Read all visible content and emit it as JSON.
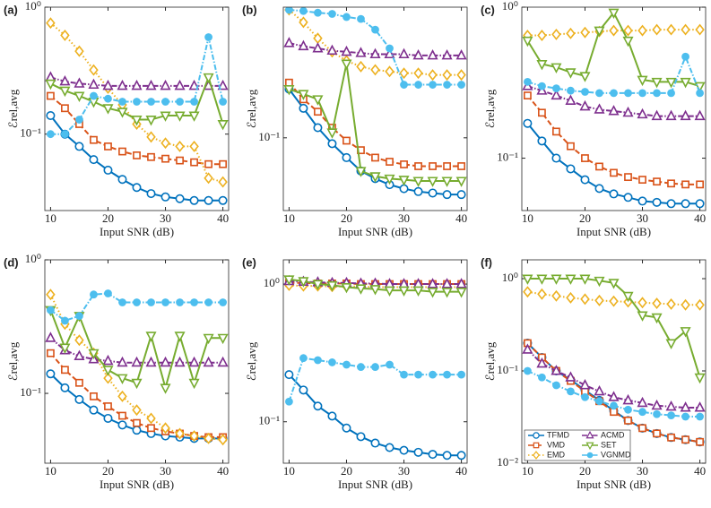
{
  "chart_data": [
    {
      "type": "line",
      "label": "(a)",
      "xlabel": "Input SNR (dB)",
      "ylabel": "ℰrel,avg",
      "ylog": true,
      "x": [
        10,
        12.5,
        15,
        17.5,
        20,
        22.5,
        25,
        27.5,
        30,
        32.5,
        35,
        37.5,
        40
      ],
      "xlim": [
        9,
        41
      ],
      "xticks": [
        10,
        20,
        30,
        40
      ],
      "ylim": [
        0.025,
        1
      ],
      "yticks": [
        {
          "value": 0.1,
          "label": "10⁻¹"
        },
        {
          "value": 1,
          "label": "10⁰"
        }
      ],
      "series": [
        {
          "color": "#0072BD",
          "marker": "circle",
          "linestyle": "solid",
          "values": [
            0.14,
            0.1,
            0.08,
            0.063,
            0.052,
            0.044,
            0.038,
            0.034,
            0.032,
            0.031,
            0.03,
            0.03,
            0.03
          ]
        },
        {
          "color": "#D95319",
          "marker": "square",
          "linestyle": "dashed",
          "values": [
            0.2,
            0.16,
            0.12,
            0.09,
            0.08,
            0.073,
            0.068,
            0.066,
            0.064,
            0.062,
            0.06,
            0.058,
            0.058
          ]
        },
        {
          "color": "#EDB120",
          "marker": "diamond",
          "linestyle": "dotted",
          "values": [
            0.75,
            0.6,
            0.45,
            0.32,
            0.23,
            0.17,
            0.12,
            0.095,
            0.085,
            0.08,
            0.08,
            0.045,
            0.042
          ]
        },
        {
          "color": "#7E2F8E",
          "marker": "triangle-up",
          "linestyle": "dashdot",
          "values": [
            0.28,
            0.26,
            0.25,
            0.245,
            0.24,
            0.24,
            0.24,
            0.24,
            0.24,
            0.24,
            0.24,
            0.24,
            0.24
          ]
        },
        {
          "color": "#77AC30",
          "marker": "triangle-down",
          "linestyle": "solid",
          "values": [
            0.25,
            0.22,
            0.2,
            0.18,
            0.16,
            0.15,
            0.13,
            0.13,
            0.14,
            0.14,
            0.14,
            0.28,
            0.12
          ]
        },
        {
          "color": "#4DBEEE",
          "marker": "circle-filled",
          "linestyle": "dashdot",
          "values": [
            0.1,
            0.1,
            0.13,
            0.2,
            0.19,
            0.18,
            0.18,
            0.18,
            0.18,
            0.18,
            0.18,
            0.58,
            0.18
          ]
        }
      ]
    },
    {
      "type": "line",
      "label": "(b)",
      "xlabel": "Input SNR (dB)",
      "ylabel": "ℰrel,avg",
      "ylog": true,
      "x": [
        10,
        12.5,
        15,
        17.5,
        20,
        22.5,
        25,
        27.5,
        30,
        32.5,
        35,
        37.5,
        40
      ],
      "xlim": [
        9,
        41
      ],
      "xticks": [
        10,
        20,
        30,
        40
      ],
      "ylim": [
        0.027,
        1.05
      ],
      "yticks": [
        {
          "value": 0.1,
          "label": "10⁻¹"
        }
      ],
      "series": [
        {
          "color": "#0072BD",
          "marker": "circle",
          "linestyle": "solid",
          "values": [
            0.24,
            0.17,
            0.12,
            0.09,
            0.07,
            0.055,
            0.048,
            0.043,
            0.04,
            0.038,
            0.037,
            0.036,
            0.036
          ]
        },
        {
          "color": "#D95319",
          "marker": "square",
          "linestyle": "dashed",
          "values": [
            0.27,
            0.2,
            0.16,
            0.12,
            0.095,
            0.08,
            0.07,
            0.065,
            0.062,
            0.06,
            0.06,
            0.06,
            0.06
          ]
        },
        {
          "color": "#EDB120",
          "marker": "diamond",
          "linestyle": "dotted",
          "values": [
            1.0,
            0.8,
            0.6,
            0.47,
            0.4,
            0.36,
            0.34,
            0.33,
            0.32,
            0.32,
            0.31,
            0.31,
            0.31
          ]
        },
        {
          "color": "#7E2F8E",
          "marker": "triangle-up",
          "linestyle": "dashdot",
          "values": [
            0.55,
            0.52,
            0.5,
            0.48,
            0.47,
            0.46,
            0.45,
            0.45,
            0.45,
            0.44,
            0.44,
            0.44,
            0.44
          ]
        },
        {
          "color": "#77AC30",
          "marker": "triangle-down",
          "linestyle": "solid",
          "values": [
            0.24,
            0.22,
            0.2,
            0.11,
            0.38,
            0.055,
            0.05,
            0.048,
            0.047,
            0.046,
            0.046,
            0.046,
            0.046
          ]
        },
        {
          "color": "#4DBEEE",
          "marker": "circle-filled",
          "linestyle": "dashdot",
          "values": [
            1.0,
            0.98,
            0.95,
            0.93,
            0.88,
            0.85,
            0.7,
            0.5,
            0.26,
            0.26,
            0.26,
            0.26,
            0.26
          ]
        }
      ]
    },
    {
      "type": "line",
      "label": "(c)",
      "xlabel": "Input SNR (dB)",
      "ylabel": "ℰrel,avg",
      "ylog": true,
      "x": [
        10,
        12.5,
        15,
        17.5,
        20,
        22.5,
        25,
        27.5,
        30,
        32.5,
        35,
        37.5,
        40
      ],
      "xlim": [
        9,
        41
      ],
      "xticks": [
        10,
        20,
        30,
        40
      ],
      "ylim": [
        0.045,
        1
      ],
      "yticks": [
        {
          "value": 0.1,
          "label": "10⁻¹"
        },
        {
          "value": 1,
          "label": "10⁰"
        }
      ],
      "series": [
        {
          "color": "#0072BD",
          "marker": "circle",
          "linestyle": "solid",
          "values": [
            0.17,
            0.13,
            0.1,
            0.085,
            0.072,
            0.063,
            0.058,
            0.055,
            0.052,
            0.051,
            0.05,
            0.05,
            0.05
          ]
        },
        {
          "color": "#D95319",
          "marker": "square",
          "linestyle": "dashed",
          "values": [
            0.26,
            0.2,
            0.15,
            0.12,
            0.1,
            0.088,
            0.08,
            0.075,
            0.072,
            0.07,
            0.068,
            0.067,
            0.067
          ]
        },
        {
          "color": "#EDB120",
          "marker": "diamond",
          "linestyle": "dotted",
          "values": [
            0.65,
            0.65,
            0.66,
            0.67,
            0.68,
            0.69,
            0.7,
            0.7,
            0.7,
            0.71,
            0.71,
            0.71,
            0.71
          ]
        },
        {
          "color": "#7E2F8E",
          "marker": "triangle-up",
          "linestyle": "dashdot",
          "values": [
            0.3,
            0.28,
            0.26,
            0.24,
            0.22,
            0.21,
            0.205,
            0.2,
            0.195,
            0.19,
            0.19,
            0.19,
            0.19
          ]
        },
        {
          "color": "#77AC30",
          "marker": "triangle-down",
          "linestyle": "solid",
          "values": [
            0.6,
            0.42,
            0.4,
            0.37,
            0.35,
            0.7,
            0.92,
            0.6,
            0.33,
            0.32,
            0.32,
            0.32,
            0.3
          ]
        },
        {
          "color": "#4DBEEE",
          "marker": "circle-filled",
          "linestyle": "dashdot",
          "values": [
            0.32,
            0.3,
            0.29,
            0.28,
            0.275,
            0.27,
            0.27,
            0.27,
            0.27,
            0.27,
            0.27,
            0.47,
            0.27
          ]
        }
      ]
    },
    {
      "type": "line",
      "label": "(d)",
      "xlabel": "Input SNR (dB)",
      "ylabel": "ℰrel,avg",
      "ylog": true,
      "x": [
        10,
        12.5,
        15,
        17.5,
        20,
        22.5,
        25,
        27.5,
        30,
        32.5,
        35,
        37.5,
        40
      ],
      "xlim": [
        9,
        41
      ],
      "xticks": [
        10,
        20,
        30,
        40
      ],
      "ylim": [
        0.03,
        1
      ],
      "yticks": [
        {
          "value": 0.1,
          "label": "10⁻¹"
        },
        {
          "value": 1,
          "label": "10⁰"
        }
      ],
      "series": [
        {
          "color": "#0072BD",
          "marker": "circle",
          "linestyle": "solid",
          "values": [
            0.14,
            0.11,
            0.09,
            0.075,
            0.065,
            0.058,
            0.053,
            0.05,
            0.048,
            0.047,
            0.046,
            0.046,
            0.046
          ]
        },
        {
          "color": "#D95319",
          "marker": "square",
          "linestyle": "dashed",
          "values": [
            0.2,
            0.15,
            0.12,
            0.095,
            0.08,
            0.068,
            0.06,
            0.055,
            0.052,
            0.05,
            0.048,
            0.047,
            0.047
          ]
        },
        {
          "color": "#EDB120",
          "marker": "diamond",
          "linestyle": "dotted",
          "values": [
            0.55,
            0.33,
            0.25,
            0.2,
            0.13,
            0.095,
            0.075,
            0.065,
            0.055,
            0.05,
            0.048,
            0.046,
            0.045
          ]
        },
        {
          "color": "#7E2F8E",
          "marker": "triangle-up",
          "linestyle": "dashdot",
          "values": [
            0.26,
            0.21,
            0.19,
            0.18,
            0.175,
            0.17,
            0.17,
            0.17,
            0.17,
            0.17,
            0.17,
            0.17,
            0.17
          ]
        },
        {
          "color": "#77AC30",
          "marker": "triangle-down",
          "linestyle": "solid",
          "values": [
            0.42,
            0.22,
            0.38,
            0.2,
            0.15,
            0.13,
            0.12,
            0.27,
            0.11,
            0.27,
            0.12,
            0.26,
            0.26
          ]
        },
        {
          "color": "#4DBEEE",
          "marker": "circle-filled",
          "linestyle": "dashdot",
          "values": [
            0.42,
            0.35,
            0.38,
            0.55,
            0.56,
            0.48,
            0.48,
            0.48,
            0.48,
            0.48,
            0.48,
            0.48,
            0.48
          ]
        }
      ]
    },
    {
      "type": "line",
      "label": "(e)",
      "xlabel": "Input SNR (dB)",
      "ylabel": "ℰrel,avg",
      "ylog": true,
      "x": [
        10,
        12.5,
        15,
        17.5,
        20,
        22.5,
        25,
        27.5,
        30,
        32.5,
        35,
        37.5,
        40
      ],
      "xlim": [
        9,
        41
      ],
      "xticks": [
        10,
        20,
        30,
        40
      ],
      "ylim": [
        0.05,
        1.5
      ],
      "yticks": [
        {
          "value": 0.1,
          "label": "10⁻¹"
        },
        {
          "value": 1,
          "label": "10⁰"
        }
      ],
      "series": [
        {
          "color": "#0072BD",
          "marker": "circle",
          "linestyle": "solid",
          "values": [
            0.22,
            0.17,
            0.13,
            0.11,
            0.09,
            0.078,
            0.07,
            0.065,
            0.062,
            0.06,
            0.058,
            0.057,
            0.057
          ]
        },
        {
          "color": "#D95319",
          "marker": "square",
          "linestyle": "dashed",
          "values": [
            1.02,
            1.02,
            1.01,
            1.01,
            1.01,
            1.0,
            1.0,
            1.0,
            1.0,
            1.0,
            1.0,
            1.0,
            1.0
          ]
        },
        {
          "color": "#EDB120",
          "marker": "diamond",
          "linestyle": "dotted",
          "values": [
            0.98,
            0.97,
            0.97,
            0.96,
            0.96,
            0.96,
            0.95,
            0.95,
            0.95,
            0.95,
            0.95,
            0.95,
            0.95
          ]
        },
        {
          "color": "#7E2F8E",
          "marker": "triangle-up",
          "linestyle": "dashdot",
          "values": [
            1.05,
            1.04,
            1.03,
            1.02,
            1.02,
            1.01,
            1.01,
            1.0,
            1.0,
            1.0,
            1.0,
            1.0,
            1.0
          ]
        },
        {
          "color": "#77AC30",
          "marker": "triangle-down",
          "linestyle": "solid",
          "values": [
            1.08,
            1.05,
            1.0,
            0.98,
            0.95,
            0.93,
            0.92,
            0.9,
            0.9,
            0.9,
            0.88,
            0.88,
            0.88
          ]
        },
        {
          "color": "#4DBEEE",
          "marker": "circle-filled",
          "linestyle": "dashdot",
          "values": [
            0.14,
            0.29,
            0.28,
            0.27,
            0.26,
            0.25,
            0.25,
            0.26,
            0.22,
            0.22,
            0.22,
            0.22,
            0.22
          ]
        }
      ]
    },
    {
      "type": "line",
      "label": "(f)",
      "xlabel": "Input SNR (dB)",
      "ylabel": "ℰrel,avg",
      "ylog": true,
      "legend": "lower left",
      "x": [
        10,
        12.5,
        15,
        17.5,
        20,
        22.5,
        25,
        27.5,
        30,
        32.5,
        35,
        37.5,
        40
      ],
      "xlim": [
        9,
        41
      ],
      "xticks": [
        10,
        20,
        30,
        40
      ],
      "ylim": [
        0.01,
        1.6
      ],
      "yticks": [
        {
          "value": 0.01,
          "label": "10⁻²"
        },
        {
          "value": 0.1,
          "label": "10⁻¹"
        },
        {
          "value": 1,
          "label": "10⁰"
        }
      ],
      "series": [
        {
          "name": "TFMD",
          "color": "#0072BD",
          "marker": "circle",
          "linestyle": "solid",
          "values": [
            0.2,
            0.14,
            0.1,
            0.08,
            0.062,
            0.048,
            0.037,
            0.029,
            0.024,
            0.021,
            0.019,
            0.018,
            0.017
          ]
        },
        {
          "name": "VMD",
          "color": "#D95319",
          "marker": "square",
          "linestyle": "dashed",
          "values": [
            0.2,
            0.14,
            0.1,
            0.078,
            0.06,
            0.047,
            0.036,
            0.029,
            0.024,
            0.021,
            0.019,
            0.018,
            0.017
          ]
        },
        {
          "name": "EMD",
          "color": "#EDB120",
          "marker": "diamond",
          "linestyle": "dotted",
          "values": [
            0.72,
            0.68,
            0.65,
            0.62,
            0.6,
            0.58,
            0.57,
            0.56,
            0.55,
            0.54,
            0.53,
            0.52,
            0.52
          ]
        },
        {
          "name": "ACMD",
          "color": "#7E2F8E",
          "marker": "triangle-up",
          "linestyle": "dashdot",
          "values": [
            0.17,
            0.12,
            0.1,
            0.085,
            0.07,
            0.06,
            0.052,
            0.048,
            0.045,
            0.042,
            0.041,
            0.04,
            0.04
          ]
        },
        {
          "name": "SET",
          "color": "#77AC30",
          "marker": "triangle-down",
          "linestyle": "solid",
          "values": [
            1.0,
            1.0,
            1.0,
            1.0,
            1.0,
            0.95,
            0.9,
            0.65,
            0.4,
            0.38,
            0.2,
            0.27,
            0.085
          ]
        },
        {
          "name": "VGNMD",
          "color": "#4DBEEE",
          "marker": "circle-filled",
          "linestyle": "dashdot",
          "values": [
            0.1,
            0.085,
            0.07,
            0.06,
            0.052,
            0.047,
            0.042,
            0.038,
            0.036,
            0.034,
            0.033,
            0.032,
            0.032
          ]
        }
      ]
    }
  ]
}
